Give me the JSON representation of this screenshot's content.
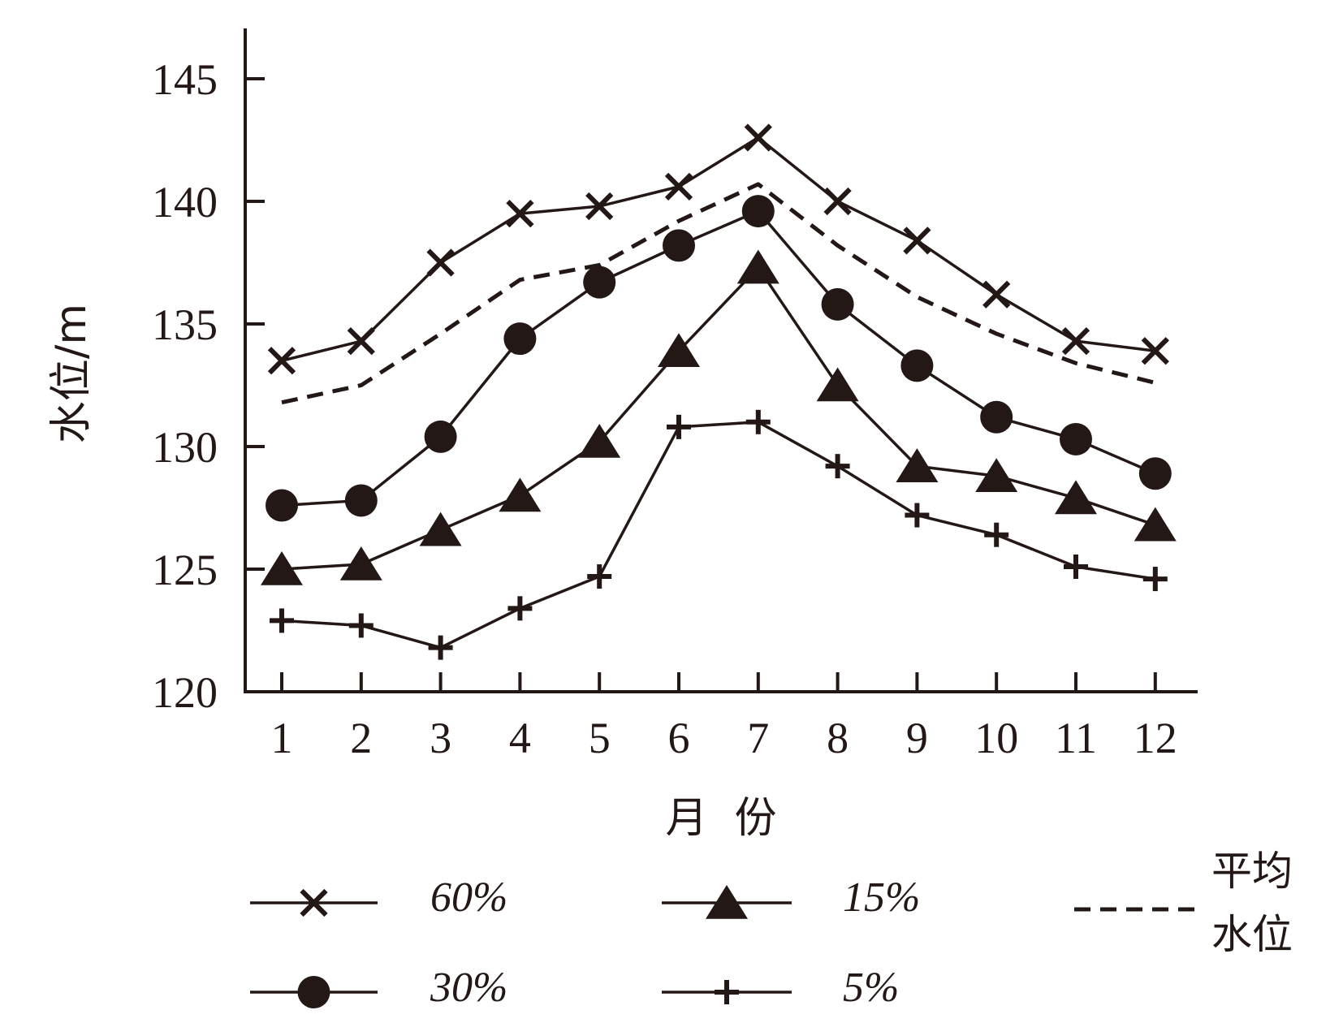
{
  "chart_data": {
    "type": "line",
    "title": "",
    "xlabel": "月  份",
    "ylabel": "水位/m",
    "categories": [
      "1",
      "2",
      "3",
      "4",
      "5",
      "6",
      "7",
      "8",
      "9",
      "10",
      "11",
      "12"
    ],
    "y_ticks": [
      "120",
      "125",
      "130",
      "135",
      "140",
      "145"
    ],
    "ylim": [
      120,
      146
    ],
    "grid": false,
    "series": [
      {
        "name": "60%",
        "marker": "x",
        "style": "solid",
        "values": [
          133.5,
          134.3,
          137.5,
          139.5,
          139.8,
          140.6,
          142.6,
          140.0,
          138.4,
          136.2,
          134.3,
          133.9
        ]
      },
      {
        "name": "30%",
        "marker": "circle",
        "style": "solid",
        "values": [
          127.6,
          127.8,
          130.4,
          134.4,
          136.7,
          138.2,
          139.6,
          135.8,
          133.3,
          131.2,
          130.3,
          128.9
        ]
      },
      {
        "name": "15%",
        "marker": "triangle",
        "style": "solid",
        "values": [
          125.0,
          125.2,
          126.6,
          128.0,
          130.2,
          133.9,
          137.3,
          132.5,
          129.2,
          128.8,
          127.9,
          126.8
        ]
      },
      {
        "name": "5%",
        "marker": "plus",
        "style": "solid",
        "values": [
          122.9,
          122.7,
          121.8,
          123.4,
          124.7,
          130.8,
          131.0,
          129.2,
          127.2,
          126.4,
          125.1,
          124.6
        ]
      },
      {
        "name": "平均水位",
        "marker": "none",
        "style": "dashed",
        "values": [
          131.8,
          132.5,
          134.6,
          136.8,
          137.4,
          139.2,
          140.7,
          138.2,
          136.1,
          134.6,
          133.4,
          132.6
        ]
      }
    ],
    "legend": {
      "placement": "bottom",
      "items": [
        {
          "label": "60%",
          "marker": "x"
        },
        {
          "label": "30%",
          "marker": "circle"
        },
        {
          "label": "15%",
          "marker": "triangle"
        },
        {
          "label": "5%",
          "marker": "plus"
        },
        {
          "label_line1": "平均",
          "label_line2": "水位",
          "marker": "dashed"
        }
      ]
    },
    "colors": {
      "ink": "#231815",
      "background": "#ffffff"
    }
  }
}
